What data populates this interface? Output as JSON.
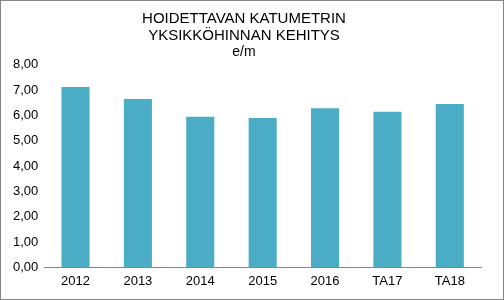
{
  "chart_data": {
    "type": "bar",
    "title": [
      "HOIDETTAVAN KATUMETRIN",
      "YKSIKKÖHINNAN KEHITYS"
    ],
    "subtitle": "e/m",
    "categories": [
      "2012",
      "2013",
      "2014",
      "2015",
      "2016",
      "TA17",
      "TA18"
    ],
    "values": [
      7.12,
      6.65,
      5.95,
      5.9,
      6.28,
      6.15,
      6.45
    ],
    "color": "#4bacc6",
    "ylim": [
      0,
      8
    ],
    "yticks": [
      {
        "value": 0,
        "label": "0,00"
      },
      {
        "value": 1,
        "label": "1,00"
      },
      {
        "value": 2,
        "label": "2,00"
      },
      {
        "value": 3,
        "label": "3,00"
      },
      {
        "value": 4,
        "label": "4,00"
      },
      {
        "value": 5,
        "label": "5,00"
      },
      {
        "value": 6,
        "label": "6,00"
      },
      {
        "value": 7,
        "label": "7,00"
      },
      {
        "value": 8,
        "label": "8,00"
      }
    ],
    "grid": false
  }
}
